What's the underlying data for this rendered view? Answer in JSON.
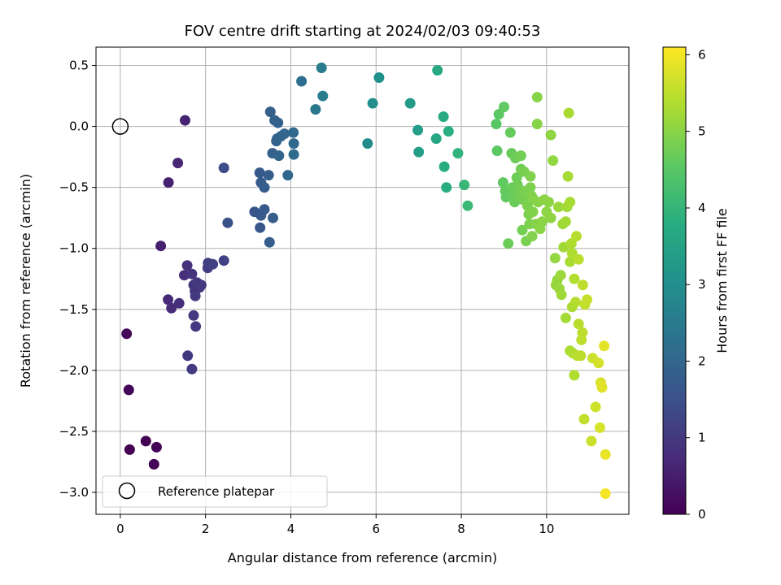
{
  "chart_data": {
    "type": "scatter",
    "title": "FOV centre drift starting at 2024/02/03 09:40:53",
    "xlabel": "Angular distance from reference (arcmin)",
    "ylabel": "Rotation from reference (arcmin)",
    "xlim": [
      -0.57,
      11.93
    ],
    "ylim": [
      -3.18,
      0.65
    ],
    "xticks": [
      0,
      2,
      4,
      6,
      8,
      10
    ],
    "xtick_labels": [
      "0",
      "2",
      "4",
      "6",
      "8",
      "10"
    ],
    "yticks": [
      0.5,
      0.0,
      -0.5,
      -1.0,
      -1.5,
      -2.0,
      -2.5,
      -3.0
    ],
    "ytick_labels": [
      "0.5",
      "0.0",
      "−0.5",
      "−1.0",
      "−1.5",
      "−2.0",
      "−2.5",
      "−3.0"
    ],
    "grid": true,
    "legend": {
      "position": "lower-left",
      "entries": [
        {
          "label": "Reference platepar",
          "marker": "open-circle"
        }
      ]
    },
    "reference_point": {
      "x": 0.0,
      "y": 0.0
    },
    "colorbar": {
      "label": "Hours from first FF file",
      "colormap": "viridis",
      "range": [
        0,
        6.1
      ],
      "ticks": [
        0,
        1,
        2,
        3,
        4,
        5,
        6
      ],
      "tick_labels": [
        "0",
        "1",
        "2",
        "3",
        "4",
        "5",
        "6"
      ]
    },
    "series": [
      {
        "columns": [
          "x",
          "y",
          "hours"
        ],
        "points": [
          [
            0.22,
            -2.65,
            0.0
          ],
          [
            0.6,
            -2.58,
            0.02
          ],
          [
            0.85,
            -2.63,
            0.04
          ],
          [
            0.79,
            -2.77,
            0.06
          ],
          [
            0.2,
            -2.16,
            0.08
          ],
          [
            0.15,
            -1.7,
            0.1
          ],
          [
            0.95,
            -0.98,
            0.5
          ],
          [
            1.13,
            -0.46,
            0.55
          ],
          [
            1.52,
            0.05,
            0.6
          ],
          [
            1.35,
            -0.3,
            0.65
          ],
          [
            1.12,
            -1.42,
            0.7
          ],
          [
            1.2,
            -1.49,
            0.75
          ],
          [
            1.38,
            -1.45,
            0.8
          ],
          [
            1.5,
            -1.22,
            0.82
          ],
          [
            1.57,
            -1.14,
            0.85
          ],
          [
            1.68,
            -1.21,
            0.88
          ],
          [
            1.72,
            -1.3,
            0.9
          ],
          [
            1.75,
            -1.35,
            0.92
          ],
          [
            1.8,
            -1.28,
            0.94
          ],
          [
            1.86,
            -1.32,
            0.96
          ],
          [
            1.9,
            -1.3,
            0.98
          ],
          [
            1.76,
            -1.39,
            1.0
          ],
          [
            1.72,
            -1.55,
            1.0
          ],
          [
            1.77,
            -1.64,
            1.02
          ],
          [
            1.58,
            -1.88,
            1.02
          ],
          [
            1.68,
            -1.99,
            1.05
          ],
          [
            2.06,
            -1.12,
            1.1
          ],
          [
            2.05,
            -1.16,
            1.12
          ],
          [
            2.17,
            -1.13,
            1.15
          ],
          [
            2.43,
            -1.1,
            1.2
          ],
          [
            2.43,
            -0.34,
            1.4
          ],
          [
            2.52,
            -0.79,
            1.5
          ],
          [
            3.15,
            -0.7,
            1.6
          ],
          [
            3.28,
            -0.83,
            1.65
          ],
          [
            3.3,
            -0.73,
            1.68
          ],
          [
            3.38,
            -0.68,
            1.7
          ],
          [
            3.27,
            -0.38,
            1.72
          ],
          [
            3.3,
            -0.46,
            1.74
          ],
          [
            3.48,
            -0.4,
            1.76
          ],
          [
            3.5,
            -0.95,
            1.78
          ],
          [
            3.58,
            -0.75,
            1.8
          ],
          [
            3.38,
            -0.5,
            1.82
          ],
          [
            3.52,
            0.12,
            1.85
          ],
          [
            3.62,
            0.05,
            1.87
          ],
          [
            3.7,
            0.03,
            1.88
          ],
          [
            3.57,
            -0.22,
            1.9
          ],
          [
            3.66,
            -0.12,
            1.92
          ],
          [
            3.68,
            -0.1,
            1.94
          ],
          [
            3.72,
            -0.24,
            1.96
          ],
          [
            3.77,
            -0.08,
            1.98
          ],
          [
            3.85,
            -0.06,
            2.0
          ],
          [
            3.93,
            -0.4,
            2.02
          ],
          [
            4.06,
            -0.05,
            2.05
          ],
          [
            4.07,
            -0.14,
            2.07
          ],
          [
            4.07,
            -0.23,
            2.1
          ],
          [
            4.25,
            0.37,
            2.2
          ],
          [
            4.58,
            0.14,
            2.4
          ],
          [
            4.72,
            0.48,
            2.5
          ],
          [
            4.75,
            0.25,
            2.55
          ],
          [
            5.8,
            -0.14,
            2.9
          ],
          [
            5.92,
            0.19,
            3.0
          ],
          [
            6.07,
            0.4,
            3.05
          ],
          [
            6.8,
            0.19,
            3.3
          ],
          [
            6.98,
            -0.03,
            3.4
          ],
          [
            7.0,
            -0.21,
            3.45
          ],
          [
            7.41,
            -0.1,
            3.6
          ],
          [
            7.44,
            0.46,
            3.65
          ],
          [
            7.58,
            0.08,
            3.7
          ],
          [
            7.6,
            -0.33,
            3.75
          ],
          [
            7.65,
            -0.5,
            3.78
          ],
          [
            7.7,
            -0.04,
            3.8
          ],
          [
            7.92,
            -0.22,
            3.95
          ],
          [
            8.07,
            -0.48,
            4.05
          ],
          [
            8.15,
            -0.65,
            4.1
          ],
          [
            8.82,
            0.02,
            4.5
          ],
          [
            8.84,
            -0.2,
            4.55
          ],
          [
            8.88,
            0.1,
            4.55
          ],
          [
            9.0,
            0.16,
            4.58
          ],
          [
            8.98,
            -0.46,
            4.6
          ],
          [
            9.03,
            -0.53,
            4.62
          ],
          [
            9.05,
            -0.58,
            4.6
          ],
          [
            9.1,
            -0.96,
            4.7
          ],
          [
            9.15,
            -0.05,
            4.65
          ],
          [
            9.18,
            -0.22,
            4.66
          ],
          [
            9.2,
            -0.5,
            4.68
          ],
          [
            9.22,
            -0.55,
            4.7
          ],
          [
            9.25,
            -0.62,
            4.7
          ],
          [
            9.27,
            -0.26,
            4.72
          ],
          [
            9.3,
            -0.42,
            4.73
          ],
          [
            9.32,
            -0.48,
            4.74
          ],
          [
            9.35,
            -0.58,
            4.75
          ],
          [
            9.38,
            -0.52,
            4.76
          ],
          [
            9.4,
            -0.35,
            4.78
          ],
          [
            9.4,
            -0.24,
            4.78
          ],
          [
            9.42,
            -0.55,
            4.8
          ],
          [
            9.43,
            -0.85,
            4.8
          ],
          [
            9.45,
            -0.6,
            4.82
          ],
          [
            9.47,
            -0.37,
            4.82
          ],
          [
            9.5,
            -0.53,
            4.84
          ],
          [
            9.52,
            -0.94,
            4.85
          ],
          [
            9.55,
            -0.65,
            4.86
          ],
          [
            9.58,
            -0.72,
            4.87
          ],
          [
            9.6,
            -0.8,
            4.88
          ],
          [
            9.62,
            -0.5,
            4.88
          ],
          [
            9.62,
            -0.41,
            4.9
          ],
          [
            9.65,
            -0.57,
            4.9
          ],
          [
            9.66,
            -0.9,
            4.92
          ],
          [
            9.68,
            -0.7,
            4.93
          ],
          [
            9.7,
            -0.6,
            4.94
          ],
          [
            9.75,
            -0.8,
            4.95
          ],
          [
            9.78,
            0.02,
            4.96
          ],
          [
            9.78,
            0.24,
            4.96
          ],
          [
            9.8,
            -0.62,
            4.97
          ],
          [
            9.85,
            -0.84,
            4.98
          ],
          [
            9.9,
            -0.78,
            5.0
          ],
          [
            9.95,
            -0.6,
            5.0
          ],
          [
            10.0,
            -0.7,
            5.02
          ],
          [
            10.05,
            -0.62,
            5.03
          ],
          [
            10.1,
            -0.07,
            5.05
          ],
          [
            10.1,
            -0.75,
            5.05
          ],
          [
            10.15,
            -0.28,
            5.08
          ],
          [
            10.2,
            -1.08,
            5.1
          ],
          [
            10.22,
            -1.3,
            5.12
          ],
          [
            10.25,
            -1.26,
            5.12
          ],
          [
            10.28,
            -0.66,
            5.15
          ],
          [
            10.3,
            -1.33,
            5.15
          ],
          [
            10.33,
            -1.22,
            5.17
          ],
          [
            10.35,
            -1.38,
            5.2
          ],
          [
            10.38,
            -0.8,
            5.2
          ],
          [
            10.4,
            -0.99,
            5.22
          ],
          [
            10.45,
            -0.78,
            5.23
          ],
          [
            10.45,
            -1.57,
            5.25
          ],
          [
            10.48,
            -0.66,
            5.25
          ],
          [
            10.5,
            -0.41,
            5.27
          ],
          [
            10.52,
            0.11,
            5.28
          ],
          [
            10.55,
            -0.62,
            5.28
          ],
          [
            10.55,
            -1.11,
            5.3
          ],
          [
            10.55,
            -1.84,
            5.32
          ],
          [
            10.58,
            -0.96,
            5.33
          ],
          [
            10.6,
            -1.48,
            5.34
          ],
          [
            10.6,
            -1.04,
            5.35
          ],
          [
            10.62,
            -1.86,
            5.36
          ],
          [
            10.65,
            -2.04,
            5.38
          ],
          [
            10.65,
            -1.25,
            5.38
          ],
          [
            10.68,
            -1.44,
            5.4
          ],
          [
            10.7,
            -0.9,
            5.4
          ],
          [
            10.72,
            -1.88,
            5.42
          ],
          [
            10.75,
            -1.62,
            5.44
          ],
          [
            10.75,
            -1.09,
            5.45
          ],
          [
            10.8,
            -1.88,
            5.47
          ],
          [
            10.82,
            -1.75,
            5.48
          ],
          [
            10.84,
            -1.69,
            5.49
          ],
          [
            10.85,
            -1.3,
            5.5
          ],
          [
            10.88,
            -2.4,
            5.52
          ],
          [
            10.9,
            -1.46,
            5.55
          ],
          [
            10.95,
            -1.42,
            5.57
          ],
          [
            11.05,
            -2.58,
            5.6
          ],
          [
            11.08,
            -1.9,
            5.62
          ],
          [
            11.15,
            -2.3,
            5.65
          ],
          [
            11.22,
            -1.94,
            5.7
          ],
          [
            11.25,
            -2.47,
            5.75
          ],
          [
            11.27,
            -2.1,
            5.78
          ],
          [
            11.3,
            -2.14,
            5.82
          ],
          [
            11.35,
            -1.8,
            5.85
          ],
          [
            11.38,
            -2.69,
            5.9
          ],
          [
            11.38,
            -3.01,
            6.0
          ]
        ]
      }
    ]
  }
}
